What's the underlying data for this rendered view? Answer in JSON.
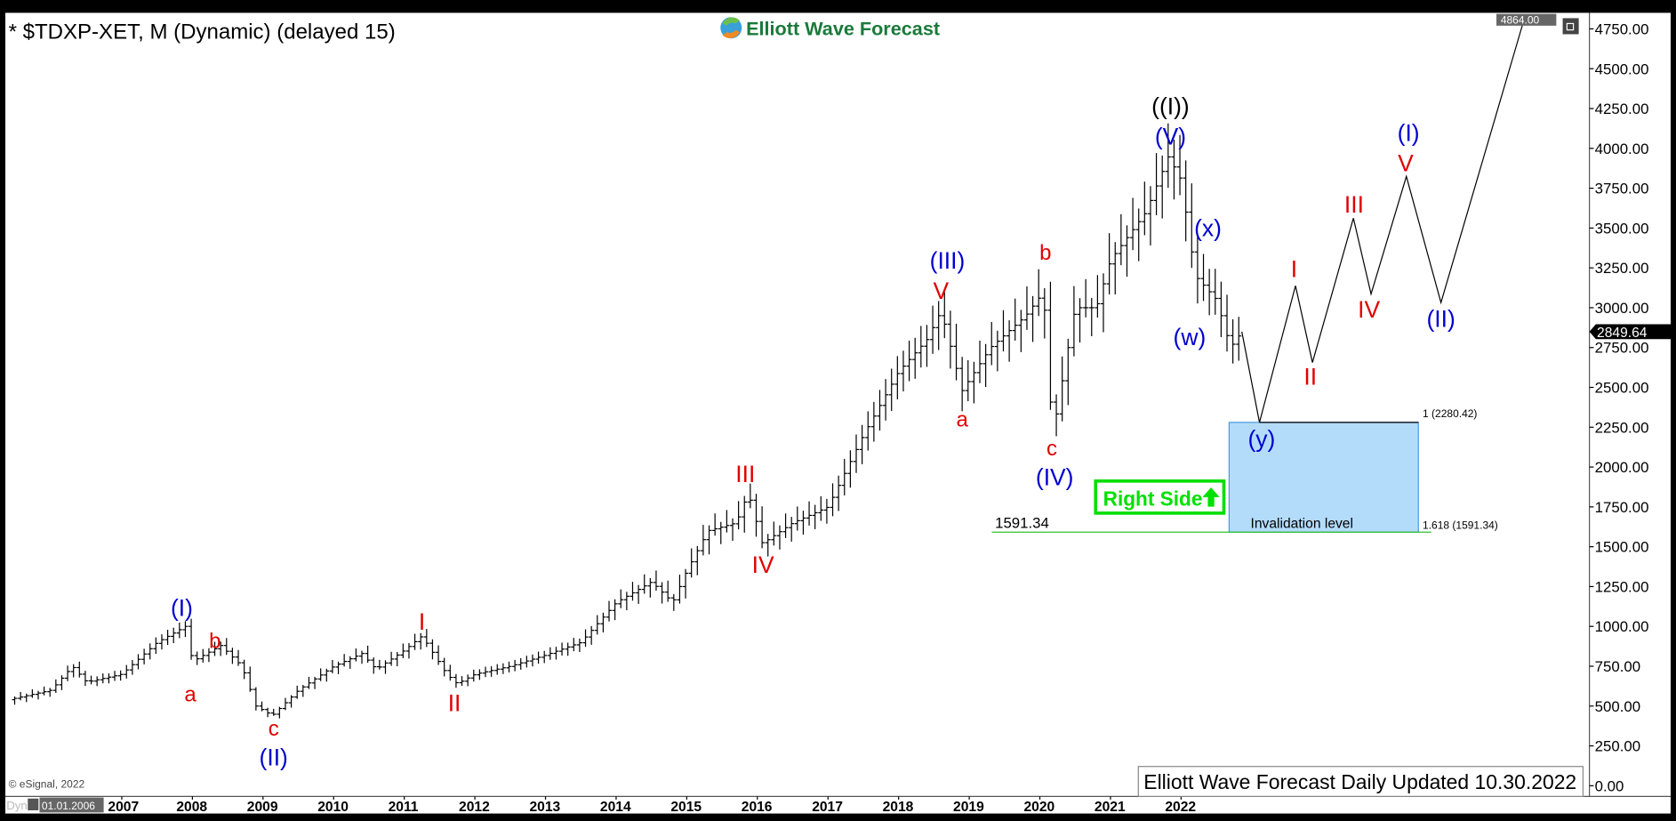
{
  "header": {
    "title": "* $TDXP-XET, M (Dynamic) (delayed 15)",
    "logo_text": "Elliott Wave Forecast",
    "restore_icon": "window-restore-icon"
  },
  "footer": {
    "copyright": "© eSignal, 2022",
    "update_note": "Elliott Wave Forecast Daily Updated 10.30.2022",
    "dyn_label": "Dyn",
    "start_date": "01.01.2006",
    "lock_icon": "lock-icon"
  },
  "colors": {
    "bars": "#000000",
    "wave_red": "#e00000",
    "wave_blue": "#0000d0",
    "wave_black": "#000000",
    "box_fill": "#b3dcfb",
    "green": "#00e000",
    "invalidation_line": "#30c030"
  },
  "chart_data": {
    "type": "ohlc-bar",
    "symbol": "$TDXP-XET",
    "interval": "M",
    "ylim": [
      0,
      4864
    ],
    "y_ticks": [
      "0.00",
      "250.00",
      "500.00",
      "750.00",
      "1000.00",
      "1250.00",
      "1500.00",
      "1750.00",
      "2000.00",
      "2250.00",
      "2500.00",
      "2750.00",
      "3000.00",
      "3250.00",
      "3500.00",
      "3750.00",
      "4000.00",
      "4250.00",
      "4500.00",
      "4750.00"
    ],
    "x_ticks": [
      "2007",
      "2008",
      "2009",
      "2010",
      "2011",
      "2012",
      "2013",
      "2014",
      "2015",
      "2016",
      "2017",
      "2018",
      "2019",
      "2020",
      "2021",
      "2022"
    ],
    "top_price_label": "4864.00",
    "last_price": "2849.64",
    "price_path": [
      [
        2005.4,
        540
      ],
      [
        2006.0,
        600
      ],
      [
        2006.3,
        750
      ],
      [
        2006.5,
        650
      ],
      [
        2007.0,
        700
      ],
      [
        2007.5,
        900
      ],
      [
        2007.9,
        1000
      ],
      [
        2008.0,
        780
      ],
      [
        2008.4,
        880
      ],
      [
        2008.7,
        750
      ],
      [
        2008.9,
        500
      ],
      [
        2009.13,
        440
      ],
      [
        2009.5,
        600
      ],
      [
        2010.0,
        750
      ],
      [
        2010.4,
        830
      ],
      [
        2010.6,
        730
      ],
      [
        2011.0,
        850
      ],
      [
        2011.25,
        940
      ],
      [
        2011.6,
        700
      ],
      [
        2011.75,
        640
      ],
      [
        2012.0,
        700
      ],
      [
        2012.5,
        750
      ],
      [
        2013.0,
        820
      ],
      [
        2013.5,
        900
      ],
      [
        2014.0,
        1150
      ],
      [
        2014.5,
        1280
      ],
      [
        2014.8,
        1150
      ],
      [
        2015.0,
        1350
      ],
      [
        2015.3,
        1600
      ],
      [
        2015.7,
        1650
      ],
      [
        2015.87,
        1840
      ],
      [
        2016.07,
        1520
      ],
      [
        2016.5,
        1650
      ],
      [
        2017.0,
        1750
      ],
      [
        2017.5,
        2200
      ],
      [
        2018.0,
        2600
      ],
      [
        2018.4,
        2800
      ],
      [
        2018.6,
        2980
      ],
      [
        2018.9,
        2480
      ],
      [
        2019.3,
        2750
      ],
      [
        2019.8,
        2950
      ],
      [
        2020.05,
        3100
      ],
      [
        2020.18,
        2200
      ],
      [
        2020.5,
        3000
      ],
      [
        2020.8,
        3000
      ],
      [
        2021.0,
        3300
      ],
      [
        2021.5,
        3600
      ],
      [
        2021.82,
        3950
      ],
      [
        2022.0,
        3800
      ],
      [
        2022.2,
        3200
      ],
      [
        2022.5,
        3050
      ],
      [
        2022.7,
        2750
      ],
      [
        2022.86,
        2849.64
      ]
    ],
    "projection_path": [
      [
        2022.86,
        2849.64
      ],
      [
        2023.11,
        2280.42
      ],
      [
        2023.62,
        3138
      ],
      [
        2023.86,
        2656
      ],
      [
        2024.44,
        3562
      ],
      [
        2024.69,
        3086
      ],
      [
        2025.19,
        3824
      ],
      [
        2025.68,
        3032
      ],
      [
        2026.84,
        4784
      ]
    ],
    "wave_labels": [
      {
        "text": "(I)",
        "color": "blue",
        "at": [
          2007.85,
          1120
        ]
      },
      {
        "text": "a",
        "color": "red",
        "at": [
          2007.97,
          584
        ]
      },
      {
        "text": "b",
        "color": "red",
        "at": [
          2008.32,
          919
        ]
      },
      {
        "text": "c",
        "color": "red",
        "at": [
          2009.15,
          335
        ]
      },
      {
        "text": "(II)",
        "color": "blue",
        "at": [
          2009.15,
          181
        ]
      },
      {
        "text": "I",
        "color": "red",
        "at": [
          2011.25,
          1033
        ]
      },
      {
        "text": "II",
        "color": "red",
        "at": [
          2011.71,
          523
        ]
      },
      {
        "text": "III",
        "color": "red",
        "at": [
          2015.83,
          1959
        ]
      },
      {
        "text": "IV",
        "color": "red",
        "at": [
          2016.08,
          1389
        ]
      },
      {
        "text": "(III)",
        "color": "blue",
        "at": [
          2018.69,
          3254
        ]
      },
      {
        "text": "V",
        "color": "red",
        "at": [
          2018.6,
          3110
        ]
      },
      {
        "text": "a",
        "color": "red",
        "at": [
          2018.9,
          2308
        ]
      },
      {
        "text": "b",
        "color": "red",
        "at": [
          2020.08,
          3355
        ]
      },
      {
        "text": "c",
        "color": "red",
        "at": [
          2020.17,
          2066
        ]
      },
      {
        "text": "(IV)",
        "color": "blue",
        "at": [
          2020.21,
          1939
        ]
      },
      {
        "text": "((I))",
        "color": "black",
        "at": [
          2021.85,
          4254
        ]
      },
      {
        "text": "(V)",
        "color": "blue",
        "at": [
          2021.85,
          4079
        ]
      },
      {
        "text": "(x)",
        "color": "blue",
        "at": [
          2022.38,
          3502
        ]
      },
      {
        "text": "(w)",
        "color": "blue",
        "at": [
          2022.12,
          2818
        ]
      },
      {
        "text": "(y)",
        "color": "blue",
        "at": [
          2023.14,
          2180
        ]
      },
      {
        "text": "I",
        "color": "red",
        "at": [
          2023.6,
          3247
        ]
      },
      {
        "text": "II",
        "color": "red",
        "at": [
          2023.83,
          2570
        ]
      },
      {
        "text": "III",
        "color": "red",
        "at": [
          2024.45,
          3650
        ]
      },
      {
        "text": "IV",
        "color": "red",
        "at": [
          2024.66,
          2992
        ]
      },
      {
        "text": "(I)",
        "color": "blue",
        "at": [
          2025.22,
          4079
        ]
      },
      {
        "text": "V",
        "color": "red",
        "at": [
          2025.18,
          3911
        ]
      },
      {
        "text": "(II)",
        "color": "blue",
        "at": [
          2025.68,
          2932
        ]
      }
    ],
    "target_box": {
      "from_year": 2022.68,
      "to_year": 2025.36,
      "top": 2280.42,
      "bottom": 1591.34,
      "top_label": "1 (2280.42)",
      "bottom_label": "1.618 (1591.34)",
      "inner_label": "Invalidation level"
    },
    "invalidation": {
      "value_label": "1591.34",
      "value": 1591.34,
      "from_year": 2019.32
    },
    "right_side_label": "Right Side"
  }
}
